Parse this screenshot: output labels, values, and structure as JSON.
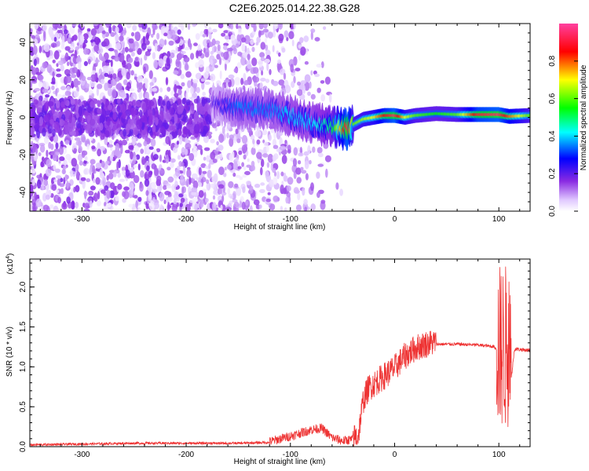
{
  "figure": {
    "title": "C2E6.2025.014.22.38.G28"
  },
  "chart_data": [
    {
      "type": "heatmap",
      "title": "C2E6.2025.014.22.38.G28",
      "xlabel": "Height of straight line (km)",
      "ylabel": "Frequency (Hz)",
      "xlim": [
        -350,
        130
      ],
      "ylim": [
        -50,
        50
      ],
      "x_ticks": [
        -300,
        -200,
        -100,
        0,
        100
      ],
      "y_ticks": [
        -40,
        -20,
        0,
        20,
        40
      ],
      "colorbar": {
        "label": "Normalized spectral amplitude",
        "range": [
          0,
          1
        ],
        "ticks": [
          "0.0",
          "0.2",
          "0.4",
          "0.6",
          "0.8"
        ],
        "colormap": [
          "#ffffff",
          "#e0c8ff",
          "#8a2be2",
          "#0000ff",
          "#00ffff",
          "#00ff00",
          "#ffff00",
          "#ff0000",
          "#ff40a0"
        ]
      },
      "ridge": {
        "x": [
          -175,
          -150,
          -120,
          -100,
          -80,
          -60,
          -50,
          -45,
          -40,
          -30,
          -20,
          -10,
          0,
          10,
          20,
          40,
          60,
          80,
          100,
          110,
          130
        ],
        "freq": [
          7,
          5,
          4,
          1,
          -3,
          -5,
          -6,
          -6,
          -4,
          -1,
          0,
          1,
          1,
          0,
          1,
          2,
          1.5,
          1.5,
          1.5,
          0.5,
          1
        ],
        "amplitude": [
          0.2,
          0.35,
          0.35,
          0.4,
          0.4,
          0.5,
          0.8,
          0.95,
          0.6,
          0.65,
          0.7,
          0.85,
          0.95,
          0.7,
          0.6,
          0.55,
          0.6,
          0.9,
          0.95,
          0.8,
          0.6
        ]
      },
      "noise_until_x": -60
    },
    {
      "type": "line",
      "xlabel": "Height of straight line (km)",
      "ylabel": "SNR (10 * v/v)",
      "y_multiplier": "(x10",
      "y_multiplier_exp": "4",
      "y_multiplier_close": ")",
      "xlim": [
        -350,
        130
      ],
      "ylim": [
        0,
        2.35
      ],
      "x_ticks": [
        -300,
        -200,
        -100,
        0,
        100
      ],
      "y_ticks": [
        "0.0",
        "0.5",
        "1.0",
        "1.5",
        "2.0"
      ],
      "color": "#ee3333",
      "series": [
        {
          "x": [
            -350,
            -300,
            -250,
            -200,
            -150,
            -120,
            -100,
            -80,
            -70,
            -60,
            -50,
            -40,
            -35,
            -30,
            -25,
            -20,
            -10,
            0,
            10,
            20,
            30,
            40,
            60,
            80,
            95,
            100,
            103,
            105,
            107,
            110,
            115,
            130
          ],
          "y": [
            0.02,
            0.03,
            0.04,
            0.04,
            0.04,
            0.05,
            0.12,
            0.2,
            0.22,
            0.1,
            0.06,
            0.08,
            0.1,
            0.55,
            0.7,
            0.75,
            0.85,
            0.95,
            1.1,
            1.2,
            1.25,
            1.28,
            1.28,
            1.27,
            1.25,
            1.2,
            0.2,
            1.6,
            0.4,
            0.6,
            1.22,
            1.2
          ]
        }
      ]
    }
  ]
}
